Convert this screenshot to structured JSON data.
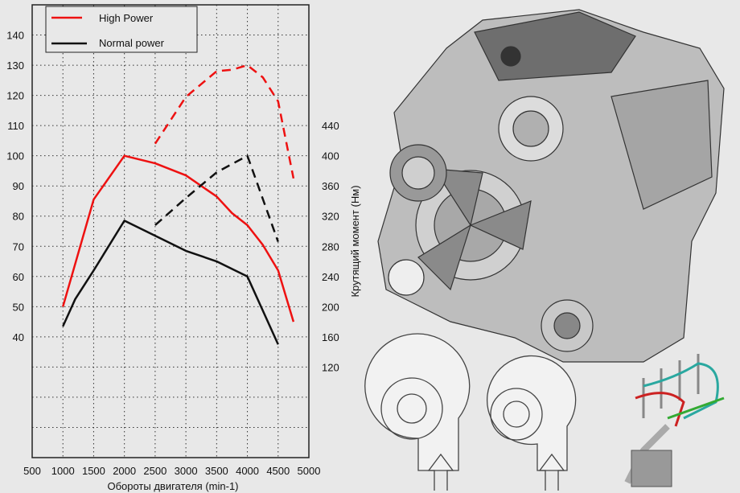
{
  "chart_data": {
    "type": "line",
    "xlabel": "Обороты двигателя  (min-1)",
    "ylabel": "",
    "y2label": "Крутящий момент  (Нм)",
    "xlim": [
      500,
      5000
    ],
    "ylim": [
      0,
      150
    ],
    "y2lim": [
      0,
      600
    ],
    "xticks": [
      500,
      1000,
      1500,
      2000,
      2500,
      3000,
      3500,
      4000,
      4500,
      5000
    ],
    "yticks": [
      40,
      50,
      60,
      70,
      80,
      90,
      100,
      110,
      120,
      130,
      140
    ],
    "y2ticks": [
      120,
      160,
      200,
      240,
      280,
      320,
      360,
      400,
      440
    ],
    "grid": true,
    "legend": {
      "placement": "top-left",
      "entries": [
        {
          "label": "High Power",
          "color": "#ee1111"
        },
        {
          "label": "Normal power",
          "color": "#111111"
        }
      ]
    },
    "series": [
      {
        "name": "High Power",
        "axis": "left",
        "style": "solid",
        "color": "#ee1111",
        "x": [
          1000,
          1500,
          2000,
          2500,
          3000,
          3500,
          3750,
          4000,
          4250,
          4500,
          4750
        ],
        "y": [
          50,
          85.5,
          100,
          97.5,
          93.5,
          86.5,
          81,
          77,
          70.5,
          62,
          45
        ]
      },
      {
        "name": "Normal power",
        "axis": "left",
        "style": "solid",
        "color": "#111111",
        "x": [
          1000,
          1200,
          1500,
          2000,
          2500,
          3000,
          3500,
          4000,
          4500
        ],
        "y": [
          43.5,
          52.5,
          62,
          78.5,
          73.5,
          68.5,
          65,
          60,
          37.5
        ]
      },
      {
        "axis": "right",
        "style": "dashed",
        "color": "#ee1111",
        "x": [
          2500,
          3000,
          3500,
          3750,
          4000,
          4250,
          4500,
          4750
        ],
        "y": [
          416,
          478,
          512,
          514,
          520,
          504,
          472,
          370
        ]
      },
      {
        "axis": "right",
        "style": "dashed",
        "color": "#111111",
        "x": [
          2500,
          3000,
          3500,
          4000,
          4500
        ],
        "y": [
          308,
          344,
          378,
          400,
          286
        ]
      }
    ]
  },
  "illustrations": {
    "engine": "engine-icon",
    "turbo_left": "turbocharger-icon",
    "turbo_right": "turbocharger-icon",
    "injection": "fuel-injector-icon"
  }
}
